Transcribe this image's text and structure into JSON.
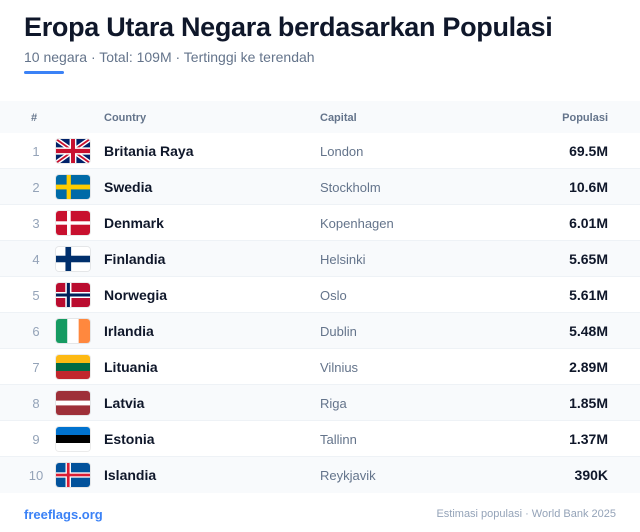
{
  "header": {
    "title": "Eropa Utara Negara berdasarkan Populasi",
    "subtitle": "10 negara · Total: 109M · Tertinggi ke terendah"
  },
  "table": {
    "columns": {
      "rank": "#",
      "country": "Country",
      "capital": "Capital",
      "population": "Populasi"
    },
    "rows": [
      {
        "rank": "1",
        "flag": "flag-gb-icon",
        "country": "Britania Raya",
        "capital": "London",
        "population": "69.5M"
      },
      {
        "rank": "2",
        "flag": "flag-se-icon",
        "country": "Swedia",
        "capital": "Stockholm",
        "population": "10.6M"
      },
      {
        "rank": "3",
        "flag": "flag-dk-icon",
        "country": "Denmark",
        "capital": "Kopenhagen",
        "population": "6.01M"
      },
      {
        "rank": "4",
        "flag": "flag-fi-icon",
        "country": "Finlandia",
        "capital": "Helsinki",
        "population": "5.65M"
      },
      {
        "rank": "5",
        "flag": "flag-no-icon",
        "country": "Norwegia",
        "capital": "Oslo",
        "population": "5.61M"
      },
      {
        "rank": "6",
        "flag": "flag-ie-icon",
        "country": "Irlandia",
        "capital": "Dublin",
        "population": "5.48M"
      },
      {
        "rank": "7",
        "flag": "flag-lt-icon",
        "country": "Lituania",
        "capital": "Vilnius",
        "population": "2.89M"
      },
      {
        "rank": "8",
        "flag": "flag-lv-icon",
        "country": "Latvia",
        "capital": "Riga",
        "population": "1.85M"
      },
      {
        "rank": "9",
        "flag": "flag-ee-icon",
        "country": "Estonia",
        "capital": "Tallinn",
        "population": "1.37M"
      },
      {
        "rank": "10",
        "flag": "flag-is-icon",
        "country": "Islandia",
        "capital": "Reykjavik",
        "population": "390K"
      }
    ]
  },
  "footer": {
    "link": "freeflags.org",
    "note": "Estimasi populasi · World Bank 2025"
  },
  "colors": {
    "accent": "#3b82f6",
    "title": "#0f172a",
    "muted": "#64748b",
    "row_alt": "#f8fafc"
  }
}
